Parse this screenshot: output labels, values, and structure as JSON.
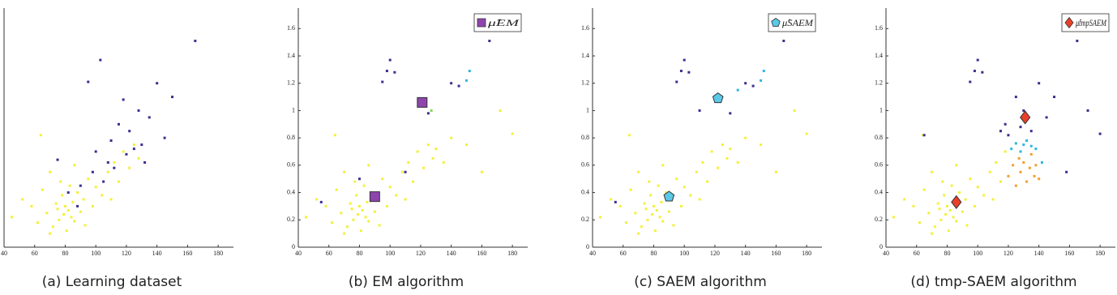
{
  "chart_data": [
    {
      "type": "scatter",
      "caption": "(a) Learning dataset",
      "xlim": [
        40,
        190
      ],
      "ylim": [
        0,
        1.75
      ],
      "xticks": [
        40,
        60,
        80,
        100,
        120,
        140,
        160,
        180
      ],
      "series": [
        {
          "color": "#f5f03a",
          "marker": "dot",
          "x": [
            45,
            52,
            58,
            62,
            65,
            68,
            70,
            72,
            74,
            75,
            76,
            78,
            79,
            80,
            81,
            82,
            83,
            84,
            85,
            86,
            88,
            90,
            92,
            95,
            98,
            100,
            104,
            108,
            112,
            115,
            118,
            122,
            125,
            128,
            64,
            70,
            77,
            86,
            93,
            110
          ],
          "y": [
            0.22,
            0.35,
            0.3,
            0.18,
            0.42,
            0.25,
            0.55,
            0.15,
            0.32,
            0.28,
            0.2,
            0.38,
            0.24,
            0.3,
            0.12,
            0.27,
            0.45,
            0.22,
            0.33,
            0.19,
            0.4,
            0.26,
            0.35,
            0.5,
            0.3,
            0.44,
            0.38,
            0.55,
            0.62,
            0.48,
            0.7,
            0.58,
            0.75,
            0.65,
            0.82,
            0.1,
            0.48,
            0.6,
            0.16,
            0.35
          ]
        },
        {
          "color": "#3b2f8f",
          "marker": "dot",
          "x": [
            75,
            82,
            88,
            90,
            95,
            98,
            100,
            103,
            105,
            108,
            110,
            112,
            115,
            118,
            120,
            122,
            125,
            128,
            130,
            132,
            135,
            140,
            145,
            150,
            165
          ],
          "y": [
            0.64,
            0.4,
            0.3,
            0.45,
            1.21,
            0.55,
            0.7,
            1.37,
            0.48,
            0.62,
            0.78,
            0.58,
            0.9,
            1.08,
            0.68,
            0.85,
            0.72,
            1.0,
            0.75,
            0.62,
            0.95,
            1.2,
            0.8,
            1.1,
            1.51
          ]
        }
      ]
    },
    {
      "type": "scatter",
      "caption": "(b) EM algorithm",
      "xlim": [
        40,
        190
      ],
      "ylim": [
        0,
        1.75
      ],
      "xticks": [
        40,
        60,
        80,
        100,
        120,
        140,
        160,
        180
      ],
      "yticks": [
        0,
        0.2,
        0.4,
        0.6,
        0.8,
        1,
        1.2,
        1.4,
        1.6
      ],
      "series": [
        {
          "color": "#f5f03a",
          "marker": "dot",
          "x": [
            45,
            52,
            58,
            62,
            65,
            68,
            70,
            72,
            74,
            75,
            76,
            78,
            79,
            80,
            81,
            82,
            83,
            84,
            85,
            86,
            88,
            90,
            92,
            95,
            98,
            100,
            104,
            108,
            112,
            115,
            118,
            122,
            125,
            128,
            64,
            70,
            77,
            86,
            93,
            110,
            130,
            135,
            140,
            150,
            160,
            172,
            180
          ],
          "y": [
            0.22,
            0.35,
            0.3,
            0.18,
            0.42,
            0.25,
            0.55,
            0.15,
            0.32,
            0.28,
            0.2,
            0.38,
            0.24,
            0.3,
            0.12,
            0.27,
            0.45,
            0.22,
            0.33,
            0.19,
            0.4,
            0.26,
            0.35,
            0.5,
            0.3,
            0.44,
            0.38,
            0.55,
            0.62,
            0.48,
            0.7,
            0.58,
            0.75,
            0.65,
            0.82,
            0.1,
            0.48,
            0.6,
            0.16,
            0.35,
            0.72,
            0.62,
            0.8,
            0.75,
            0.55,
            1.0,
            0.83
          ]
        },
        {
          "color": "#3b2f8f",
          "marker": "dot",
          "x": [
            55,
            80,
            95,
            98,
            100,
            103,
            110,
            125,
            140,
            145,
            165
          ],
          "y": [
            0.33,
            0.5,
            1.21,
            1.29,
            1.37,
            1.28,
            0.55,
            0.98,
            1.2,
            1.18,
            1.51
          ]
        },
        {
          "color": "#2fb5e0",
          "marker": "dot",
          "x": [
            150,
            152
          ],
          "y": [
            1.22,
            1.29
          ]
        },
        {
          "color": "#7ed957",
          "marker": "dot",
          "x": [
            127
          ],
          "y": [
            1.0
          ]
        },
        {
          "name": "μ̂EM",
          "color": "#8e44ad",
          "marker": "square",
          "x": [
            90,
            121
          ],
          "y": [
            0.37,
            1.06
          ]
        }
      ]
    },
    {
      "type": "scatter",
      "caption": "(c) SAEM algorithm",
      "xlim": [
        40,
        190
      ],
      "ylim": [
        0,
        1.75
      ],
      "xticks": [
        40,
        60,
        80,
        100,
        120,
        140,
        160,
        180
      ],
      "yticks": [
        0,
        0.2,
        0.4,
        0.6,
        0.8,
        1,
        1.2,
        1.4,
        1.6
      ],
      "series": [
        {
          "color": "#f5f03a",
          "marker": "dot",
          "x": [
            45,
            52,
            58,
            62,
            65,
            68,
            70,
            72,
            74,
            75,
            76,
            78,
            79,
            80,
            81,
            82,
            83,
            84,
            85,
            86,
            88,
            90,
            92,
            95,
            98,
            100,
            104,
            108,
            112,
            115,
            118,
            122,
            125,
            128,
            64,
            70,
            77,
            86,
            93,
            110,
            130,
            135,
            140,
            150,
            160,
            172,
            180
          ],
          "y": [
            0.22,
            0.35,
            0.3,
            0.18,
            0.42,
            0.25,
            0.55,
            0.15,
            0.32,
            0.28,
            0.2,
            0.38,
            0.24,
            0.3,
            0.12,
            0.27,
            0.45,
            0.22,
            0.33,
            0.19,
            0.4,
            0.26,
            0.35,
            0.5,
            0.3,
            0.44,
            0.38,
            0.55,
            0.62,
            0.48,
            0.7,
            0.58,
            0.75,
            0.65,
            0.82,
            0.1,
            0.48,
            0.6,
            0.16,
            0.35,
            0.72,
            0.62,
            0.8,
            0.75,
            0.55,
            1.0,
            0.83
          ]
        },
        {
          "color": "#3b2f8f",
          "marker": "dot",
          "x": [
            55,
            95,
            98,
            100,
            103,
            110,
            130,
            140,
            145,
            165
          ],
          "y": [
            0.33,
            1.21,
            1.29,
            1.37,
            1.28,
            1.0,
            0.98,
            1.2,
            1.18,
            1.51
          ]
        },
        {
          "color": "#2fb5e0",
          "marker": "dot",
          "x": [
            150,
            152,
            135
          ],
          "y": [
            1.22,
            1.29,
            1.15
          ]
        },
        {
          "name": "μ̂SAEM",
          "color": "#5bc8e8",
          "marker": "pentagon",
          "x": [
            90,
            122
          ],
          "y": [
            0.37,
            1.09
          ]
        }
      ]
    },
    {
      "type": "scatter",
      "caption": "(d) tmp-SAEM algorithm",
      "xlim": [
        40,
        190
      ],
      "ylim": [
        0,
        1.75
      ],
      "xticks": [
        40,
        60,
        80,
        100,
        120,
        140,
        160,
        180
      ],
      "yticks": [
        0,
        0.2,
        0.4,
        0.6,
        0.8,
        1,
        1.2,
        1.4,
        1.6
      ],
      "series": [
        {
          "color": "#f5f03a",
          "marker": "dot",
          "x": [
            45,
            52,
            58,
            62,
            65,
            68,
            70,
            72,
            74,
            75,
            76,
            78,
            79,
            80,
            81,
            82,
            83,
            84,
            85,
            86,
            88,
            90,
            92,
            95,
            98,
            100,
            104,
            108,
            112,
            115,
            118,
            64,
            70,
            77,
            86,
            93,
            110
          ],
          "y": [
            0.22,
            0.35,
            0.3,
            0.18,
            0.42,
            0.25,
            0.55,
            0.15,
            0.32,
            0.28,
            0.2,
            0.38,
            0.24,
            0.3,
            0.12,
            0.27,
            0.45,
            0.22,
            0.33,
            0.19,
            0.4,
            0.26,
            0.35,
            0.5,
            0.3,
            0.44,
            0.38,
            0.55,
            0.62,
            0.48,
            0.7,
            0.82,
            0.1,
            0.48,
            0.6,
            0.16,
            0.35
          ]
        },
        {
          "color": "#f0a030",
          "marker": "dot",
          "x": [
            120,
            123,
            125,
            127,
            128,
            130,
            132,
            134,
            135,
            137,
            138,
            140
          ],
          "y": [
            0.52,
            0.6,
            0.45,
            0.65,
            0.55,
            0.62,
            0.48,
            0.58,
            0.68,
            0.52,
            0.6,
            0.5
          ]
        },
        {
          "color": "#2fb5e0",
          "marker": "dot",
          "x": [
            122,
            125,
            128,
            130,
            132,
            135,
            138,
            142
          ],
          "y": [
            0.72,
            0.76,
            0.7,
            0.75,
            0.78,
            0.74,
            0.72,
            0.62
          ]
        },
        {
          "color": "#3b2f8f",
          "marker": "dot",
          "x": [
            65,
            95,
            98,
            100,
            103,
            115,
            118,
            120,
            125,
            128,
            130,
            135,
            140,
            145,
            150,
            158,
            165,
            172,
            180
          ],
          "y": [
            0.82,
            1.21,
            1.29,
            1.37,
            1.28,
            0.85,
            0.9,
            0.82,
            1.1,
            0.88,
            1.0,
            0.85,
            1.2,
            0.95,
            1.1,
            0.55,
            1.51,
            1.0,
            0.83
          ]
        },
        {
          "name": "μ̂tmpSAEM",
          "color": "#e8402a",
          "marker": "diamond",
          "x": [
            86,
            131
          ],
          "y": [
            0.33,
            0.95
          ]
        }
      ]
    }
  ]
}
